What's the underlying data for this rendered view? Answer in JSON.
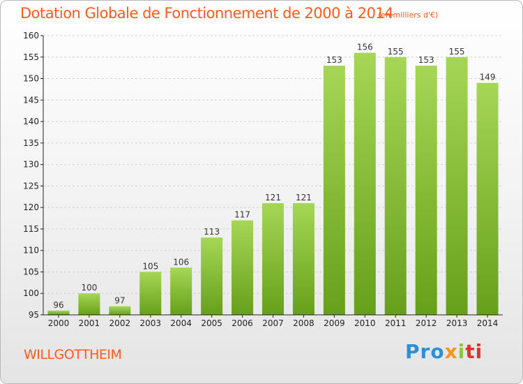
{
  "header": {
    "title": "Dotation Globale de Fonctionnement de 2000 à 2014",
    "subtitle": "(en milliers d'€)"
  },
  "footer": {
    "commune": "WILLGOTTHEIM",
    "brand": {
      "part1": "Pro",
      "part2": "x",
      "part3": "i",
      "part4": "ti"
    }
  },
  "colors": {
    "title": "#ff5a1a",
    "bar_light": "#a6d656",
    "bar_dark": "#66a01a",
    "axis": "#222222",
    "grid": "#cfcfcf"
  },
  "chart_data": {
    "type": "bar",
    "title": "Dotation Globale de Fonctionnement de 2000 à 2014",
    "subtitle": "(en milliers d'€)",
    "categories": [
      "2000",
      "2001",
      "2002",
      "2003",
      "2004",
      "2005",
      "2006",
      "2007",
      "2008",
      "2009",
      "2010",
      "2011",
      "2012",
      "2013",
      "2014"
    ],
    "values": [
      96,
      100,
      97,
      105,
      106,
      113,
      117,
      121,
      121,
      153,
      156,
      155,
      153,
      155,
      149
    ],
    "ylim": [
      95,
      160
    ],
    "yticks": [
      95,
      100,
      105,
      110,
      115,
      120,
      125,
      130,
      135,
      140,
      145,
      150,
      155,
      160
    ],
    "xlabel": "",
    "ylabel": "",
    "grid": "horizontal dashed",
    "data_labels": true
  }
}
